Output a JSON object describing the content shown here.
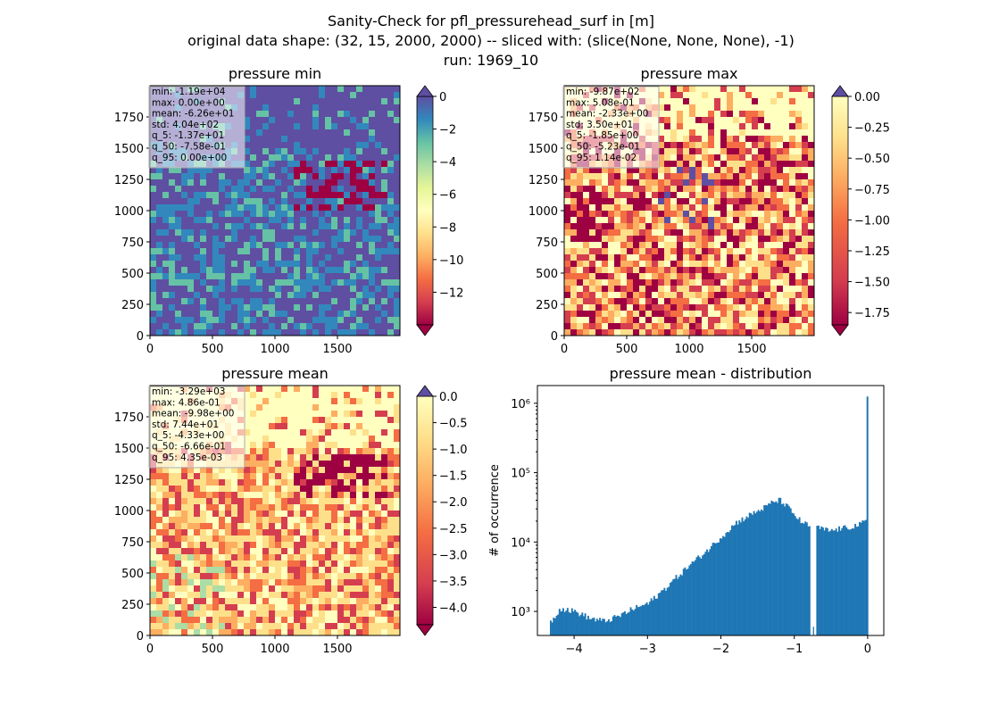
{
  "figure": {
    "title_line1": "Sanity-Check for pfl_pressurehead_surf in [m]",
    "title_line2": "original data shape: (32, 15, 2000, 2000) -- sliced with: (slice(None, None, None), -1)",
    "title_line3": "run: 1969_10"
  },
  "chart_data": [
    {
      "type": "heatmap",
      "title": "pressure min",
      "xlim": [
        0,
        2000
      ],
      "ylim": [
        0,
        2000
      ],
      "x_ticks": [
        0,
        500,
        1000,
        1500
      ],
      "y_ticks": [
        0,
        250,
        500,
        750,
        1000,
        1250,
        1500,
        1750
      ],
      "colormap": "Spectral",
      "colorbar_range": [
        -14,
        0
      ],
      "colorbar_ticks": [
        "0",
        "−2",
        "−4",
        "−6",
        "−8",
        "−10",
        "−12"
      ],
      "colorbar_tick_values": [
        0,
        -2,
        -4,
        -6,
        -8,
        -10,
        -12
      ],
      "colorbar_extend": "both",
      "stats": [
        "min: -1.19e+04",
        "max: 0.00e+00",
        "mean: -6.26e+01",
        "std: 4.04e+02",
        "q_5: -1.37e+01",
        "q_50: -7.58e-01",
        "q_95: 0.00e+00"
      ]
    },
    {
      "type": "heatmap",
      "title": "pressure max",
      "xlim": [
        0,
        2000
      ],
      "ylim": [
        0,
        2000
      ],
      "x_ticks": [
        0,
        500,
        1000,
        1500
      ],
      "y_ticks": [
        0,
        250,
        500,
        750,
        1000,
        1250,
        1500,
        1750
      ],
      "colormap": "Spectral",
      "colorbar_range": [
        -1.85,
        0
      ],
      "colorbar_ticks": [
        "0.00",
        "−0.25",
        "−0.50",
        "−0.75",
        "−1.00",
        "−1.25",
        "−1.50",
        "−1.75"
      ],
      "colorbar_tick_values": [
        0,
        -0.25,
        -0.5,
        -0.75,
        -1.0,
        -1.25,
        -1.5,
        -1.75
      ],
      "colorbar_extend": "both",
      "stats": [
        "min: -9.87e+02",
        "max: 5.08e-01",
        "mean: -2.33e+00",
        "std: 3.50e+01",
        "q_5: -1.85e+00",
        "q_50: -5.23e-01",
        "q_95: 1.14e-02"
      ]
    },
    {
      "type": "heatmap",
      "title": "pressure mean",
      "xlim": [
        0,
        2000
      ],
      "ylim": [
        0,
        2000
      ],
      "x_ticks": [
        0,
        500,
        1000,
        1500
      ],
      "y_ticks": [
        0,
        250,
        500,
        750,
        1000,
        1250,
        1500,
        1750
      ],
      "colormap": "Spectral",
      "colorbar_range": [
        -4.33,
        0
      ],
      "colorbar_ticks": [
        "0.0",
        "−0.5",
        "−1.0",
        "−1.5",
        "−2.0",
        "−2.5",
        "−3.0",
        "−3.5",
        "−4.0"
      ],
      "colorbar_tick_values": [
        0,
        -0.5,
        -1.0,
        -1.5,
        -2.0,
        -2.5,
        -3.0,
        -3.5,
        -4.0
      ],
      "colorbar_extend": "both",
      "stats": [
        "min: -3.29e+03",
        "max: 4.86e-01",
        "mean: -9.98e+00",
        "std: 7.44e+01",
        "q_5: -4.33e+00",
        "q_50: -6.66e-01",
        "q_95: 4.35e-03"
      ]
    },
    {
      "type": "bar",
      "title": "pressure mean - distribution",
      "ylabel": "# of occurrence",
      "xlabel": "",
      "y_scale": "log",
      "xlim": [
        -4.5,
        0.22
      ],
      "ylim": [
        450,
        1800000
      ],
      "x_ticks": [
        -4,
        -3,
        -2,
        -1,
        0
      ],
      "x_tick_labels": [
        "−4",
        "−3",
        "−2",
        "−1",
        "0"
      ],
      "y_ticks": [
        1000,
        10000,
        100000,
        1000000
      ],
      "y_tick_labels": [
        "10³",
        "10⁴",
        "10⁵",
        "10⁶"
      ],
      "color": "#1f77b4",
      "x": [
        -4.33,
        -4.2,
        -4.0,
        -3.9,
        -3.8,
        -3.6,
        -3.4,
        -3.2,
        -3.0,
        -2.8,
        -2.6,
        -2.4,
        -2.2,
        -2.0,
        -1.8,
        -1.6,
        -1.4,
        -1.3,
        -1.2,
        -1.1,
        -1.0,
        -0.9,
        -0.8,
        -0.75,
        -0.7,
        -0.6,
        -0.5,
        -0.4,
        -0.3,
        -0.2,
        -0.1,
        -0.02,
        0.0
      ],
      "values": [
        700,
        1100,
        1000,
        900,
        800,
        720,
        850,
        1100,
        1300,
        2000,
        3200,
        5000,
        7500,
        12000,
        19000,
        25000,
        32000,
        38000,
        40000,
        32000,
        24000,
        19000,
        17000,
        600,
        16500,
        15000,
        14500,
        15500,
        16000,
        17000,
        18000,
        21000,
        1250000
      ]
    }
  ]
}
